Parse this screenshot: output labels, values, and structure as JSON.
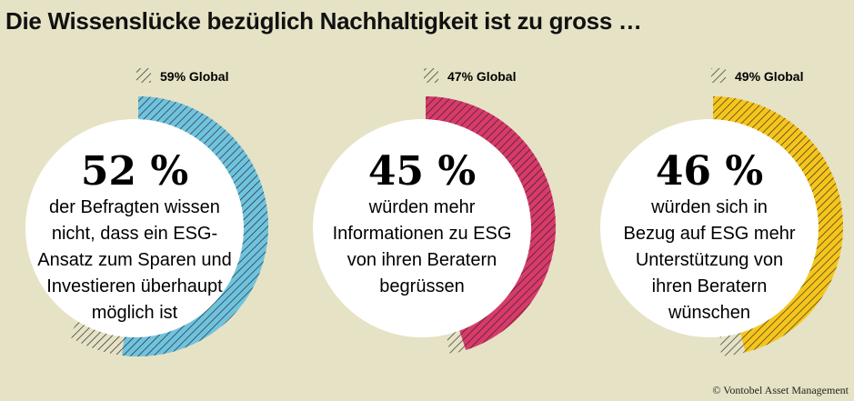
{
  "title": "Die Wissenslücke bezüglich Nachhaltigkeit ist zu gross …",
  "footer": "© Vontobel Asset Management",
  "chart_data": {
    "type": "pie",
    "title": "Die Wissenslücke bezüglich Nachhaltigkeit ist zu gross …",
    "legend_note": "hatched grey = Global",
    "series": [
      {
        "value": 52,
        "value_label": "52 %",
        "global": 59,
        "global_label": "59% Global",
        "color": "#6fc3df",
        "text": [
          "der Befragten wissen",
          "nicht, dass ein ESG-",
          "Ansatz zum Sparen und",
          "Investieren überhaupt",
          "möglich ist"
        ]
      },
      {
        "value": 45,
        "value_label": "45 %",
        "global": 47,
        "global_label": "47% Global",
        "color": "#d83a6a",
        "text": [
          "würden mehr",
          "Informationen zu ESG",
          "von ihren Beratern",
          "begrüssen"
        ]
      },
      {
        "value": 46,
        "value_label": "46 %",
        "global": 49,
        "global_label": "49% Global",
        "color": "#f6c51b",
        "text": [
          "würden sich in",
          "Bezug auf ESG mehr",
          "Unterstützung von",
          "ihren Beratern",
          "wünschen"
        ]
      }
    ]
  }
}
